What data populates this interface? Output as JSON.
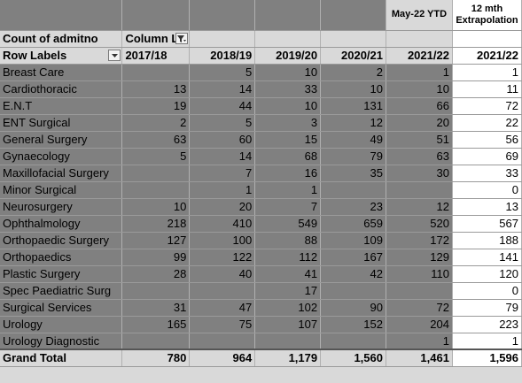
{
  "header": {
    "may_ytd": "May-22 YTD",
    "extrap_line1": "12 mth",
    "extrap_line2": "Extrapolation",
    "count_label": "Count of admitno",
    "column_label": "Column L",
    "row_labels": "Row Labels",
    "years": [
      "2017/18",
      "2018/19",
      "2019/20",
      "2020/21",
      "2021/22"
    ],
    "extrap_year": "2021/22"
  },
  "rows": [
    {
      "label": "Breast Care",
      "v": [
        "",
        "5",
        "10",
        "2",
        "1"
      ],
      "e": "1"
    },
    {
      "label": "Cardiothoracic",
      "v": [
        "13",
        "14",
        "33",
        "10",
        "10"
      ],
      "e": "11"
    },
    {
      "label": "E.N.T",
      "v": [
        "19",
        "44",
        "10",
        "131",
        "66"
      ],
      "e": "72"
    },
    {
      "label": "ENT Surgical",
      "v": [
        "2",
        "5",
        "3",
        "12",
        "20"
      ],
      "e": "22"
    },
    {
      "label": "General Surgery",
      "v": [
        "63",
        "60",
        "15",
        "49",
        "51"
      ],
      "e": "56"
    },
    {
      "label": "Gynaecology",
      "v": [
        "5",
        "14",
        "68",
        "79",
        "63"
      ],
      "e": "69"
    },
    {
      "label": "Maxillofacial Surgery",
      "v": [
        "",
        "7",
        "16",
        "35",
        "30"
      ],
      "e": "33"
    },
    {
      "label": "Minor Surgical",
      "v": [
        "",
        "1",
        "1",
        "",
        ""
      ],
      "e": "0"
    },
    {
      "label": "Neurosurgery",
      "v": [
        "10",
        "20",
        "7",
        "23",
        "12"
      ],
      "e": "13"
    },
    {
      "label": "Ophthalmology",
      "v": [
        "218",
        "410",
        "549",
        "659",
        "520"
      ],
      "e": "567"
    },
    {
      "label": "Orthopaedic Surgery",
      "v": [
        "127",
        "100",
        "88",
        "109",
        "172"
      ],
      "e": "188"
    },
    {
      "label": "Orthopaedics",
      "v": [
        "99",
        "122",
        "112",
        "167",
        "129"
      ],
      "e": "141"
    },
    {
      "label": "Plastic Surgery",
      "v": [
        "28",
        "40",
        "41",
        "42",
        "110"
      ],
      "e": "120"
    },
    {
      "label": "Spec Paediatric Surg",
      "v": [
        "",
        "",
        "17",
        "",
        ""
      ],
      "e": "0"
    },
    {
      "label": "Surgical Services",
      "v": [
        "31",
        "47",
        "102",
        "90",
        "72"
      ],
      "e": "79"
    },
    {
      "label": "Urology",
      "v": [
        "165",
        "75",
        "107",
        "152",
        "204"
      ],
      "e": "223"
    },
    {
      "label": "Urology Diagnostic",
      "v": [
        "",
        "",
        "",
        "",
        "1"
      ],
      "e": "1"
    }
  ],
  "total": {
    "label": "Grand Total",
    "v": [
      "780",
      "964",
      "1,179",
      "1,560",
      "1,461"
    ],
    "e": "1,596"
  },
  "icons": {
    "column_filter": "filter-dropdown-icon",
    "row_filter": "dropdown-arrow-icon"
  }
}
